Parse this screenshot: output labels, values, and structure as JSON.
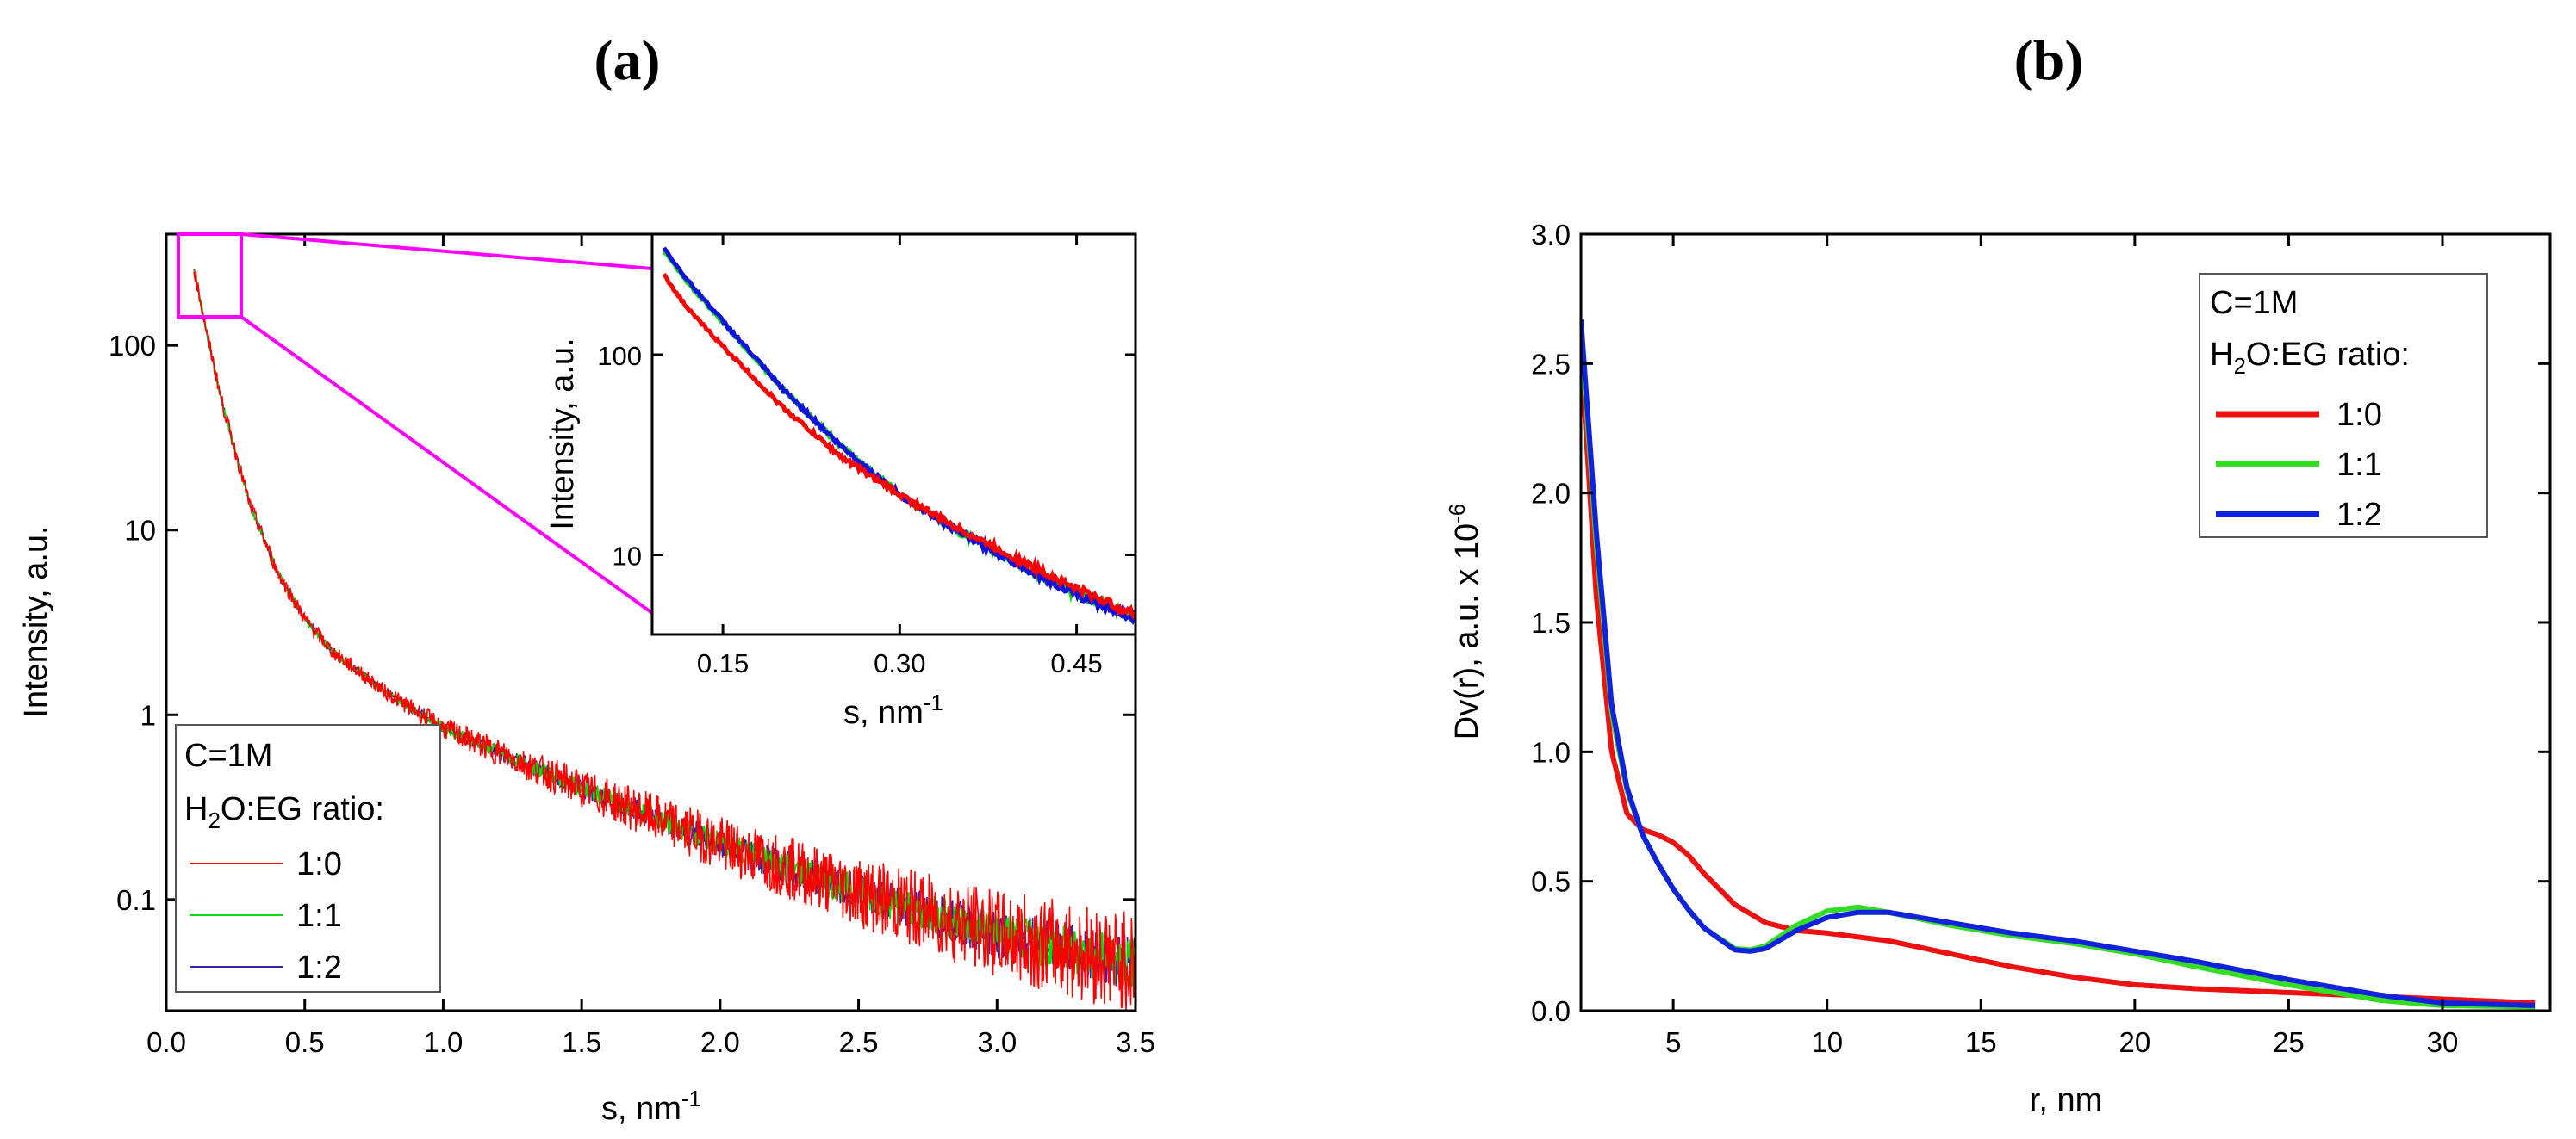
{
  "chart_data": [
    {
      "type": "line",
      "panel_label": "(a)",
      "xlabel": "s, nm",
      "xlabel_sup": "-1",
      "ylabel": "Intensity, a.u.",
      "yscale": "log",
      "xlim": [
        0.0,
        3.5
      ],
      "ylim": [
        0.025,
        400
      ],
      "xticks": [
        0.0,
        0.5,
        1.0,
        1.5,
        2.0,
        2.5,
        3.0,
        3.5
      ],
      "xtick_labels": [
        "0.0",
        "0.5",
        "1.0",
        "1.5",
        "2.0",
        "2.5",
        "3.0",
        "3.5"
      ],
      "yticks": [
        0.1,
        1,
        10,
        100
      ],
      "ytick_labels": [
        "0.1",
        "1",
        "10",
        "100"
      ],
      "legend": {
        "title_line1": "C=1M",
        "title_line2_pre": "H",
        "title_line2_sub": "2",
        "title_line2_post": "O:EG ratio:",
        "placement": "bottom-left"
      },
      "series": [
        {
          "name": "1:0",
          "color": "#ff0000"
        },
        {
          "name": "1:1",
          "color": "#00e000"
        },
        {
          "name": "1:2",
          "color": "#3b1fa8"
        }
      ],
      "approx_curve": {
        "x": [
          0.1,
          0.15,
          0.2,
          0.3,
          0.4,
          0.5,
          0.6,
          0.8,
          1.0,
          1.25,
          1.5,
          2.0,
          2.5,
          3.0,
          3.5
        ],
        "y": [
          260,
          110,
          50,
          14,
          6.0,
          3.3,
          2.2,
          1.3,
          0.85,
          0.58,
          0.4,
          0.2,
          0.11,
          0.065,
          0.045
        ]
      },
      "inset": {
        "xlabel": "s, nm",
        "xlabel_sup": "-1",
        "ylabel": "Intensity, a.u.",
        "yscale": "log",
        "xlim": [
          0.09,
          0.5
        ],
        "ylim": [
          4,
          400
        ],
        "xticks": [
          0.15,
          0.3,
          0.45
        ],
        "xtick_labels": [
          "0.15",
          "0.30",
          "0.45"
        ],
        "yticks": [
          10,
          100
        ],
        "ytick_labels": [
          "10",
          "100"
        ],
        "series": [
          {
            "name": "1:0",
            "color": "#ff0000",
            "x": [
              0.1,
              0.12,
              0.15,
              0.2,
              0.25,
              0.3,
              0.35,
              0.4,
              0.45,
              0.5
            ],
            "y": [
              250,
              170,
              110,
              55,
              31,
              20,
              13.5,
              9.5,
              6.8,
              5.0
            ]
          },
          {
            "name": "1:1",
            "color": "#00e000",
            "x": [
              0.1,
              0.12,
              0.15,
              0.2,
              0.25,
              0.3,
              0.35,
              0.4,
              0.45,
              0.5
            ],
            "y": [
              330,
              230,
              145,
              68,
              35,
              20,
              13,
              9,
              6.4,
              4.8
            ]
          },
          {
            "name": "1:2",
            "color": "#1010e0",
            "x": [
              0.1,
              0.12,
              0.15,
              0.2,
              0.25,
              0.3,
              0.35,
              0.4,
              0.45,
              0.5
            ],
            "y": [
              340,
              235,
              147,
              68,
              35,
              20,
              13,
              9,
              6.3,
              4.8
            ]
          }
        ]
      }
    },
    {
      "type": "line",
      "panel_label": "(b)",
      "xlabel": "r, nm",
      "ylabel": "Dv(r), a.u. x 10",
      "ylabel_sup": "-6",
      "xlim": [
        2,
        33.5
      ],
      "ylim": [
        0.0,
        3.0
      ],
      "xticks": [
        5,
        10,
        15,
        20,
        25,
        30
      ],
      "xtick_labels": [
        "5",
        "10",
        "15",
        "20",
        "25",
        "30"
      ],
      "yticks": [
        0.0,
        0.5,
        1.0,
        1.5,
        2.0,
        2.5,
        3.0
      ],
      "ytick_labels": [
        "0.0",
        "0.5",
        "1.0",
        "1.5",
        "2.0",
        "2.5",
        "3.0"
      ],
      "legend": {
        "title_line1": "C=1M",
        "title_line2_pre": "H",
        "title_line2_sub": "2",
        "title_line2_post": "O:EG ratio:",
        "placement": "top-right"
      },
      "series": [
        {
          "name": "1:0",
          "color": "#ee1111",
          "x": [
            2,
            2.5,
            3,
            3.5,
            4,
            4.5,
            5,
            5.5,
            6,
            7,
            8,
            9,
            10,
            12,
            14,
            16,
            18,
            20,
            22,
            25,
            28,
            30,
            33
          ],
          "y": [
            2.55,
            1.6,
            1.0,
            0.76,
            0.7,
            0.68,
            0.65,
            0.6,
            0.53,
            0.41,
            0.34,
            0.31,
            0.3,
            0.27,
            0.22,
            0.17,
            0.13,
            0.1,
            0.085,
            0.07,
            0.055,
            0.045,
            0.03
          ]
        },
        {
          "name": "1:1",
          "color": "#33dd22",
          "x": [
            2,
            2.5,
            3,
            3.5,
            4,
            4.5,
            5,
            5.5,
            6,
            7,
            7.5,
            8,
            9,
            10,
            11,
            12,
            14,
            16,
            18,
            20,
            22,
            25,
            28,
            30,
            33
          ],
          "y": [
            2.62,
            1.8,
            1.15,
            0.85,
            0.68,
            0.57,
            0.47,
            0.39,
            0.32,
            0.24,
            0.235,
            0.25,
            0.33,
            0.385,
            0.4,
            0.38,
            0.33,
            0.29,
            0.26,
            0.22,
            0.17,
            0.1,
            0.04,
            0.02,
            0.015
          ]
        },
        {
          "name": "1:2",
          "color": "#1122dd",
          "x": [
            2,
            2.5,
            3,
            3.5,
            4,
            4.5,
            5,
            5.5,
            6,
            7,
            7.5,
            8,
            9,
            10,
            11,
            12,
            14,
            16,
            18,
            20,
            22,
            25,
            28,
            30,
            33
          ],
          "y": [
            2.67,
            1.85,
            1.18,
            0.86,
            0.68,
            0.57,
            0.47,
            0.39,
            0.32,
            0.235,
            0.23,
            0.24,
            0.31,
            0.36,
            0.38,
            0.38,
            0.34,
            0.3,
            0.27,
            0.23,
            0.19,
            0.12,
            0.06,
            0.03,
            0.02
          ]
        }
      ]
    }
  ]
}
